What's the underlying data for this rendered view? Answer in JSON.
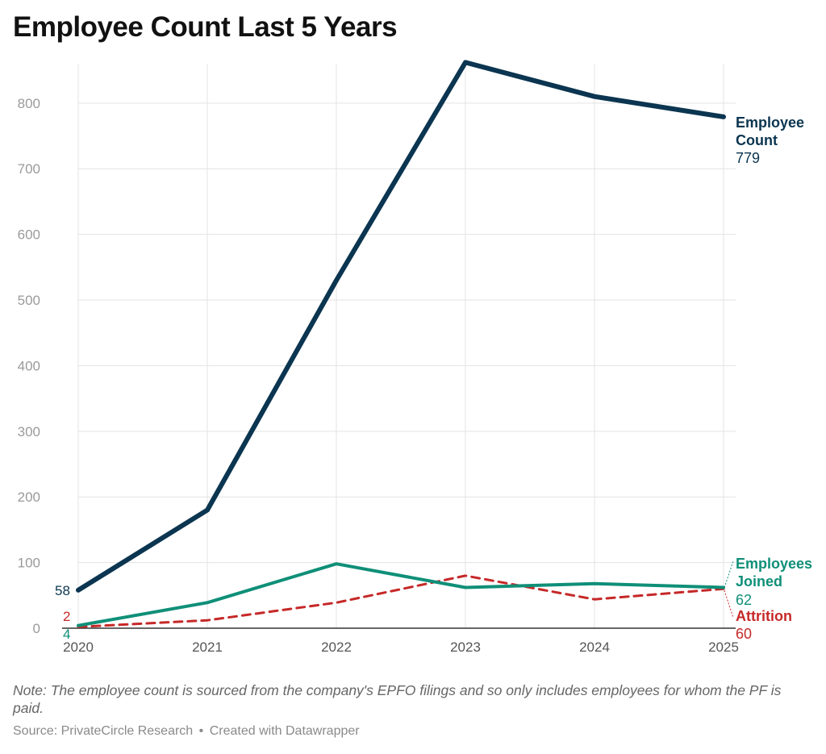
{
  "title": "Employee Count Last 5 Years",
  "note": "Note: The employee count is sourced from the company's EPFO filings and so only includes employees for whom the PF is paid.",
  "footer": {
    "source": "Source: PrivateCircle Research",
    "separator": "•",
    "credit": "Created with Datawrapper"
  },
  "chart_data": {
    "type": "line",
    "x": [
      "2020",
      "2021",
      "2022",
      "2023",
      "2024",
      "2025"
    ],
    "ylim": [
      0,
      860
    ],
    "yticks": [
      0,
      100,
      200,
      300,
      400,
      500,
      600,
      700,
      800
    ],
    "grid": true,
    "series": [
      {
        "key": "employee_count",
        "name_lines": [
          "Employee",
          "Count"
        ],
        "values": [
          58,
          180,
          530,
          862,
          810,
          779
        ],
        "color": "#0b3550",
        "style": "solid",
        "start_label": "58",
        "end_label": "779"
      },
      {
        "key": "employees_joined",
        "name_lines": [
          "Employees",
          "Joined"
        ],
        "values": [
          4,
          39,
          98,
          62,
          68,
          62
        ],
        "color": "#0f8f78",
        "style": "solid",
        "start_label": "4",
        "end_label": "62"
      },
      {
        "key": "attrition",
        "name_lines": [
          "Attrition"
        ],
        "values": [
          2,
          12,
          39,
          80,
          44,
          60
        ],
        "color": "#c62828",
        "style": "dashed",
        "start_label": "2",
        "end_label": "60"
      }
    ]
  }
}
